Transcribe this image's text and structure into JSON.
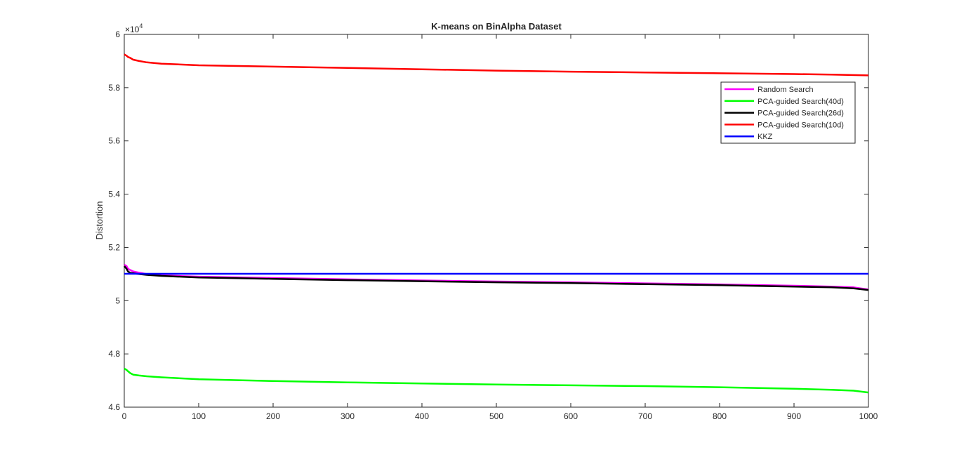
{
  "chart_data": {
    "type": "line",
    "title": "K-means on BinAlpha Dataset",
    "xlabel": "",
    "ylabel": "Distortion",
    "y_multiplier_label": "×10",
    "y_multiplier_exponent": "4",
    "xlim": [
      0,
      1000
    ],
    "ylim": [
      4.6,
      6.0
    ],
    "x_ticks": [
      0,
      100,
      200,
      300,
      400,
      500,
      600,
      700,
      800,
      900,
      1000
    ],
    "x_tick_labels": [
      "0",
      "100",
      "200",
      "300",
      "400",
      "500",
      "600",
      "700",
      "800",
      "900",
      "1000"
    ],
    "y_ticks": [
      4.6,
      4.8,
      5.0,
      5.2,
      5.4,
      5.6,
      5.8,
      6.0
    ],
    "y_tick_labels": [
      "4.6",
      "4.8",
      "5",
      "5.2",
      "5.4",
      "5.6",
      "5.8",
      "6"
    ],
    "grid": false,
    "legend_position": "top-right",
    "series": [
      {
        "name": "Random Search",
        "color": "#ff00ff",
        "x": [
          0,
          3,
          5,
          8,
          12,
          20,
          30,
          50,
          100,
          200,
          300,
          400,
          500,
          600,
          700,
          800,
          900,
          950,
          980,
          1000
        ],
        "y": [
          5.135,
          5.13,
          5.12,
          5.115,
          5.11,
          5.105,
          5.1,
          5.095,
          5.09,
          5.085,
          5.08,
          5.076,
          5.072,
          5.069,
          5.065,
          5.061,
          5.056,
          5.053,
          5.05,
          5.042
        ]
      },
      {
        "name": "PCA-guided Search(40d)",
        "color": "#00ff00",
        "x": [
          0,
          3,
          5,
          8,
          12,
          20,
          30,
          50,
          100,
          200,
          300,
          400,
          500,
          600,
          700,
          800,
          900,
          950,
          980,
          1000
        ],
        "y": [
          4.745,
          4.74,
          4.735,
          4.728,
          4.722,
          4.719,
          4.716,
          4.712,
          4.705,
          4.698,
          4.693,
          4.689,
          4.685,
          4.682,
          4.679,
          4.675,
          4.669,
          4.665,
          4.662,
          4.655
        ]
      },
      {
        "name": "PCA-guided Search(26d)",
        "color": "#000000",
        "x": [
          0,
          3,
          5,
          8,
          12,
          20,
          30,
          50,
          100,
          200,
          300,
          400,
          500,
          600,
          700,
          800,
          900,
          950,
          980,
          1000
        ],
        "y": [
          5.13,
          5.12,
          5.11,
          5.104,
          5.103,
          5.1,
          5.097,
          5.093,
          5.087,
          5.082,
          5.077,
          5.073,
          5.069,
          5.066,
          5.062,
          5.058,
          5.053,
          5.05,
          5.046,
          5.04
        ]
      },
      {
        "name": "PCA-guided Search(10d)",
        "color": "#ff0000",
        "x": [
          0,
          3,
          5,
          8,
          12,
          20,
          30,
          50,
          100,
          200,
          300,
          400,
          500,
          600,
          700,
          800,
          900,
          950,
          1000
        ],
        "y": [
          5.925,
          5.92,
          5.915,
          5.912,
          5.905,
          5.9,
          5.895,
          5.89,
          5.884,
          5.879,
          5.874,
          5.869,
          5.864,
          5.86,
          5.857,
          5.854,
          5.851,
          5.849,
          5.846
        ]
      },
      {
        "name": "KKZ",
        "color": "#0000ff",
        "x": [
          0,
          1000
        ],
        "y": [
          5.101,
          5.101
        ]
      }
    ]
  }
}
